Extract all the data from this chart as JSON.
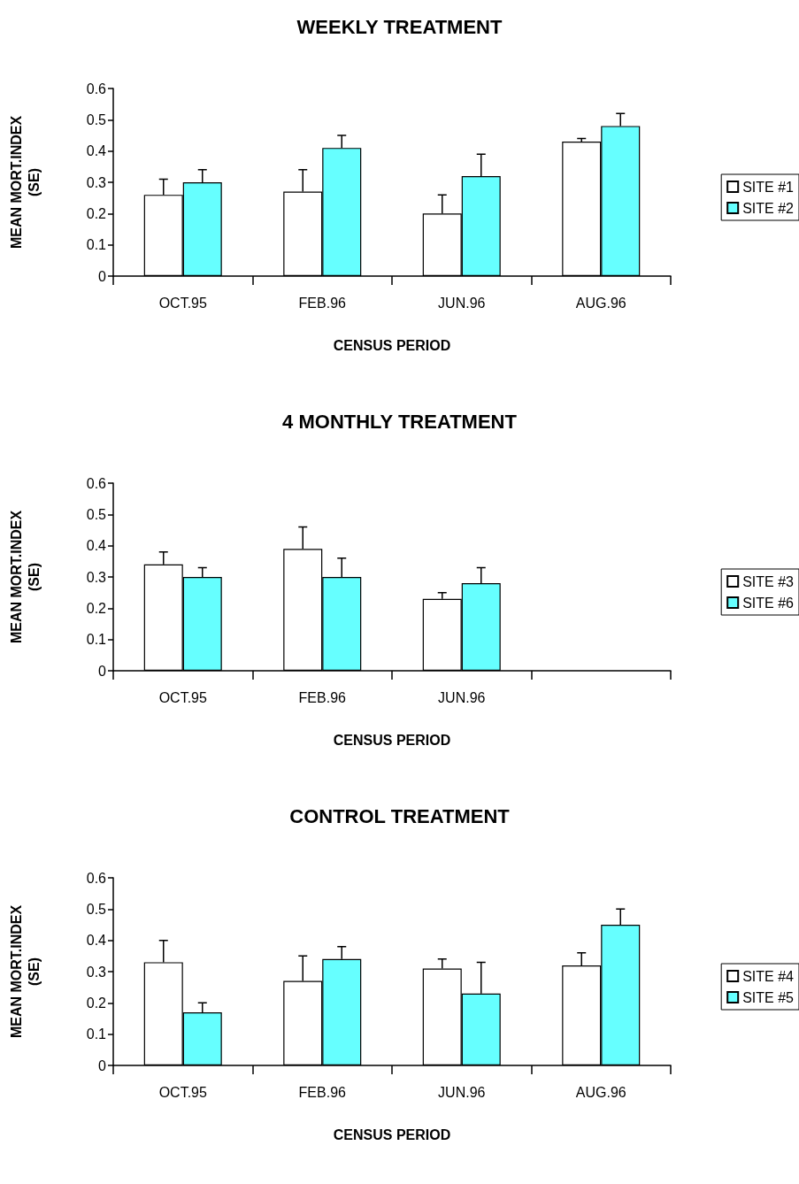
{
  "chart_data": [
    {
      "type": "bar",
      "title": "WEEKLY TREATMENT",
      "xlabel": "CENSUS PERIOD",
      "ylabel": "MEAN MORT.INDEX\n(SE)",
      "categories": [
        "OCT.95",
        "FEB.96",
        "JUN.96",
        "AUG.96"
      ],
      "ylim": [
        0,
        0.6
      ],
      "yticks": [
        0,
        0.1,
        0.2,
        0.3,
        0.4,
        0.5,
        0.6
      ],
      "grid": false,
      "legend": "right",
      "series": [
        {
          "name": "SITE #1",
          "color": "#ffffff",
          "values": [
            0.26,
            0.27,
            0.2,
            0.43
          ],
          "errors": [
            [
              0.26,
              0.31
            ],
            [
              0.27,
              0.34
            ],
            [
              0.2,
              0.26
            ],
            [
              0.43,
              0.44
            ]
          ]
        },
        {
          "name": "SITE #2",
          "color": "#66ffff",
          "values": [
            0.3,
            0.41,
            0.32,
            0.48
          ],
          "errors": [
            [
              0.3,
              0.34
            ],
            [
              0.41,
              0.45
            ],
            [
              0.32,
              0.39
            ],
            [
              0.48,
              0.52
            ]
          ]
        }
      ]
    },
    {
      "type": "bar",
      "title": "4 MONTHLY TREATMENT",
      "xlabel": "CENSUS PERIOD",
      "ylabel": "MEAN MORT.INDEX\n(SE)",
      "categories": [
        "OCT.95",
        "FEB.96",
        "JUN.96",
        null
      ],
      "ylim": [
        0,
        0.6
      ],
      "yticks": [
        0,
        0.1,
        0.2,
        0.3,
        0.4,
        0.5,
        0.6
      ],
      "grid": false,
      "legend": "right",
      "series": [
        {
          "name": "SITE #3",
          "color": "#ffffff",
          "values": [
            0.34,
            0.39,
            0.23,
            null
          ],
          "errors": [
            [
              0.34,
              0.38
            ],
            [
              0.39,
              0.46
            ],
            [
              0.23,
              0.25
            ],
            null
          ]
        },
        {
          "name": "SITE #6",
          "color": "#66ffff",
          "values": [
            0.3,
            0.3,
            0.28,
            null
          ],
          "errors": [
            [
              0.3,
              0.33
            ],
            [
              0.3,
              0.36
            ],
            [
              0.28,
              0.33
            ],
            null
          ]
        }
      ]
    },
    {
      "type": "bar",
      "title": "CONTROL TREATMENT",
      "xlabel": "CENSUS PERIOD",
      "ylabel": "MEAN MORT.INDEX\n(SE)",
      "categories": [
        "OCT.95",
        "FEB.96",
        "JUN.96",
        "AUG.96"
      ],
      "ylim": [
        0,
        0.6
      ],
      "yticks": [
        0,
        0.1,
        0.2,
        0.3,
        0.4,
        0.5,
        0.6
      ],
      "grid": false,
      "legend": "right",
      "series": [
        {
          "name": "SITE #4",
          "color": "#ffffff",
          "values": [
            0.33,
            0.27,
            0.31,
            0.32
          ],
          "errors": [
            [
              0.33,
              0.4
            ],
            [
              0.27,
              0.35
            ],
            [
              0.31,
              0.34
            ],
            [
              0.32,
              0.36
            ]
          ]
        },
        {
          "name": "SITE #5",
          "color": "#66ffff",
          "values": [
            0.17,
            0.34,
            0.23,
            0.45
          ],
          "errors": [
            [
              0.17,
              0.2
            ],
            [
              0.34,
              0.38
            ],
            [
              0.23,
              0.33
            ],
            [
              0.45,
              0.5
            ]
          ]
        }
      ]
    }
  ]
}
